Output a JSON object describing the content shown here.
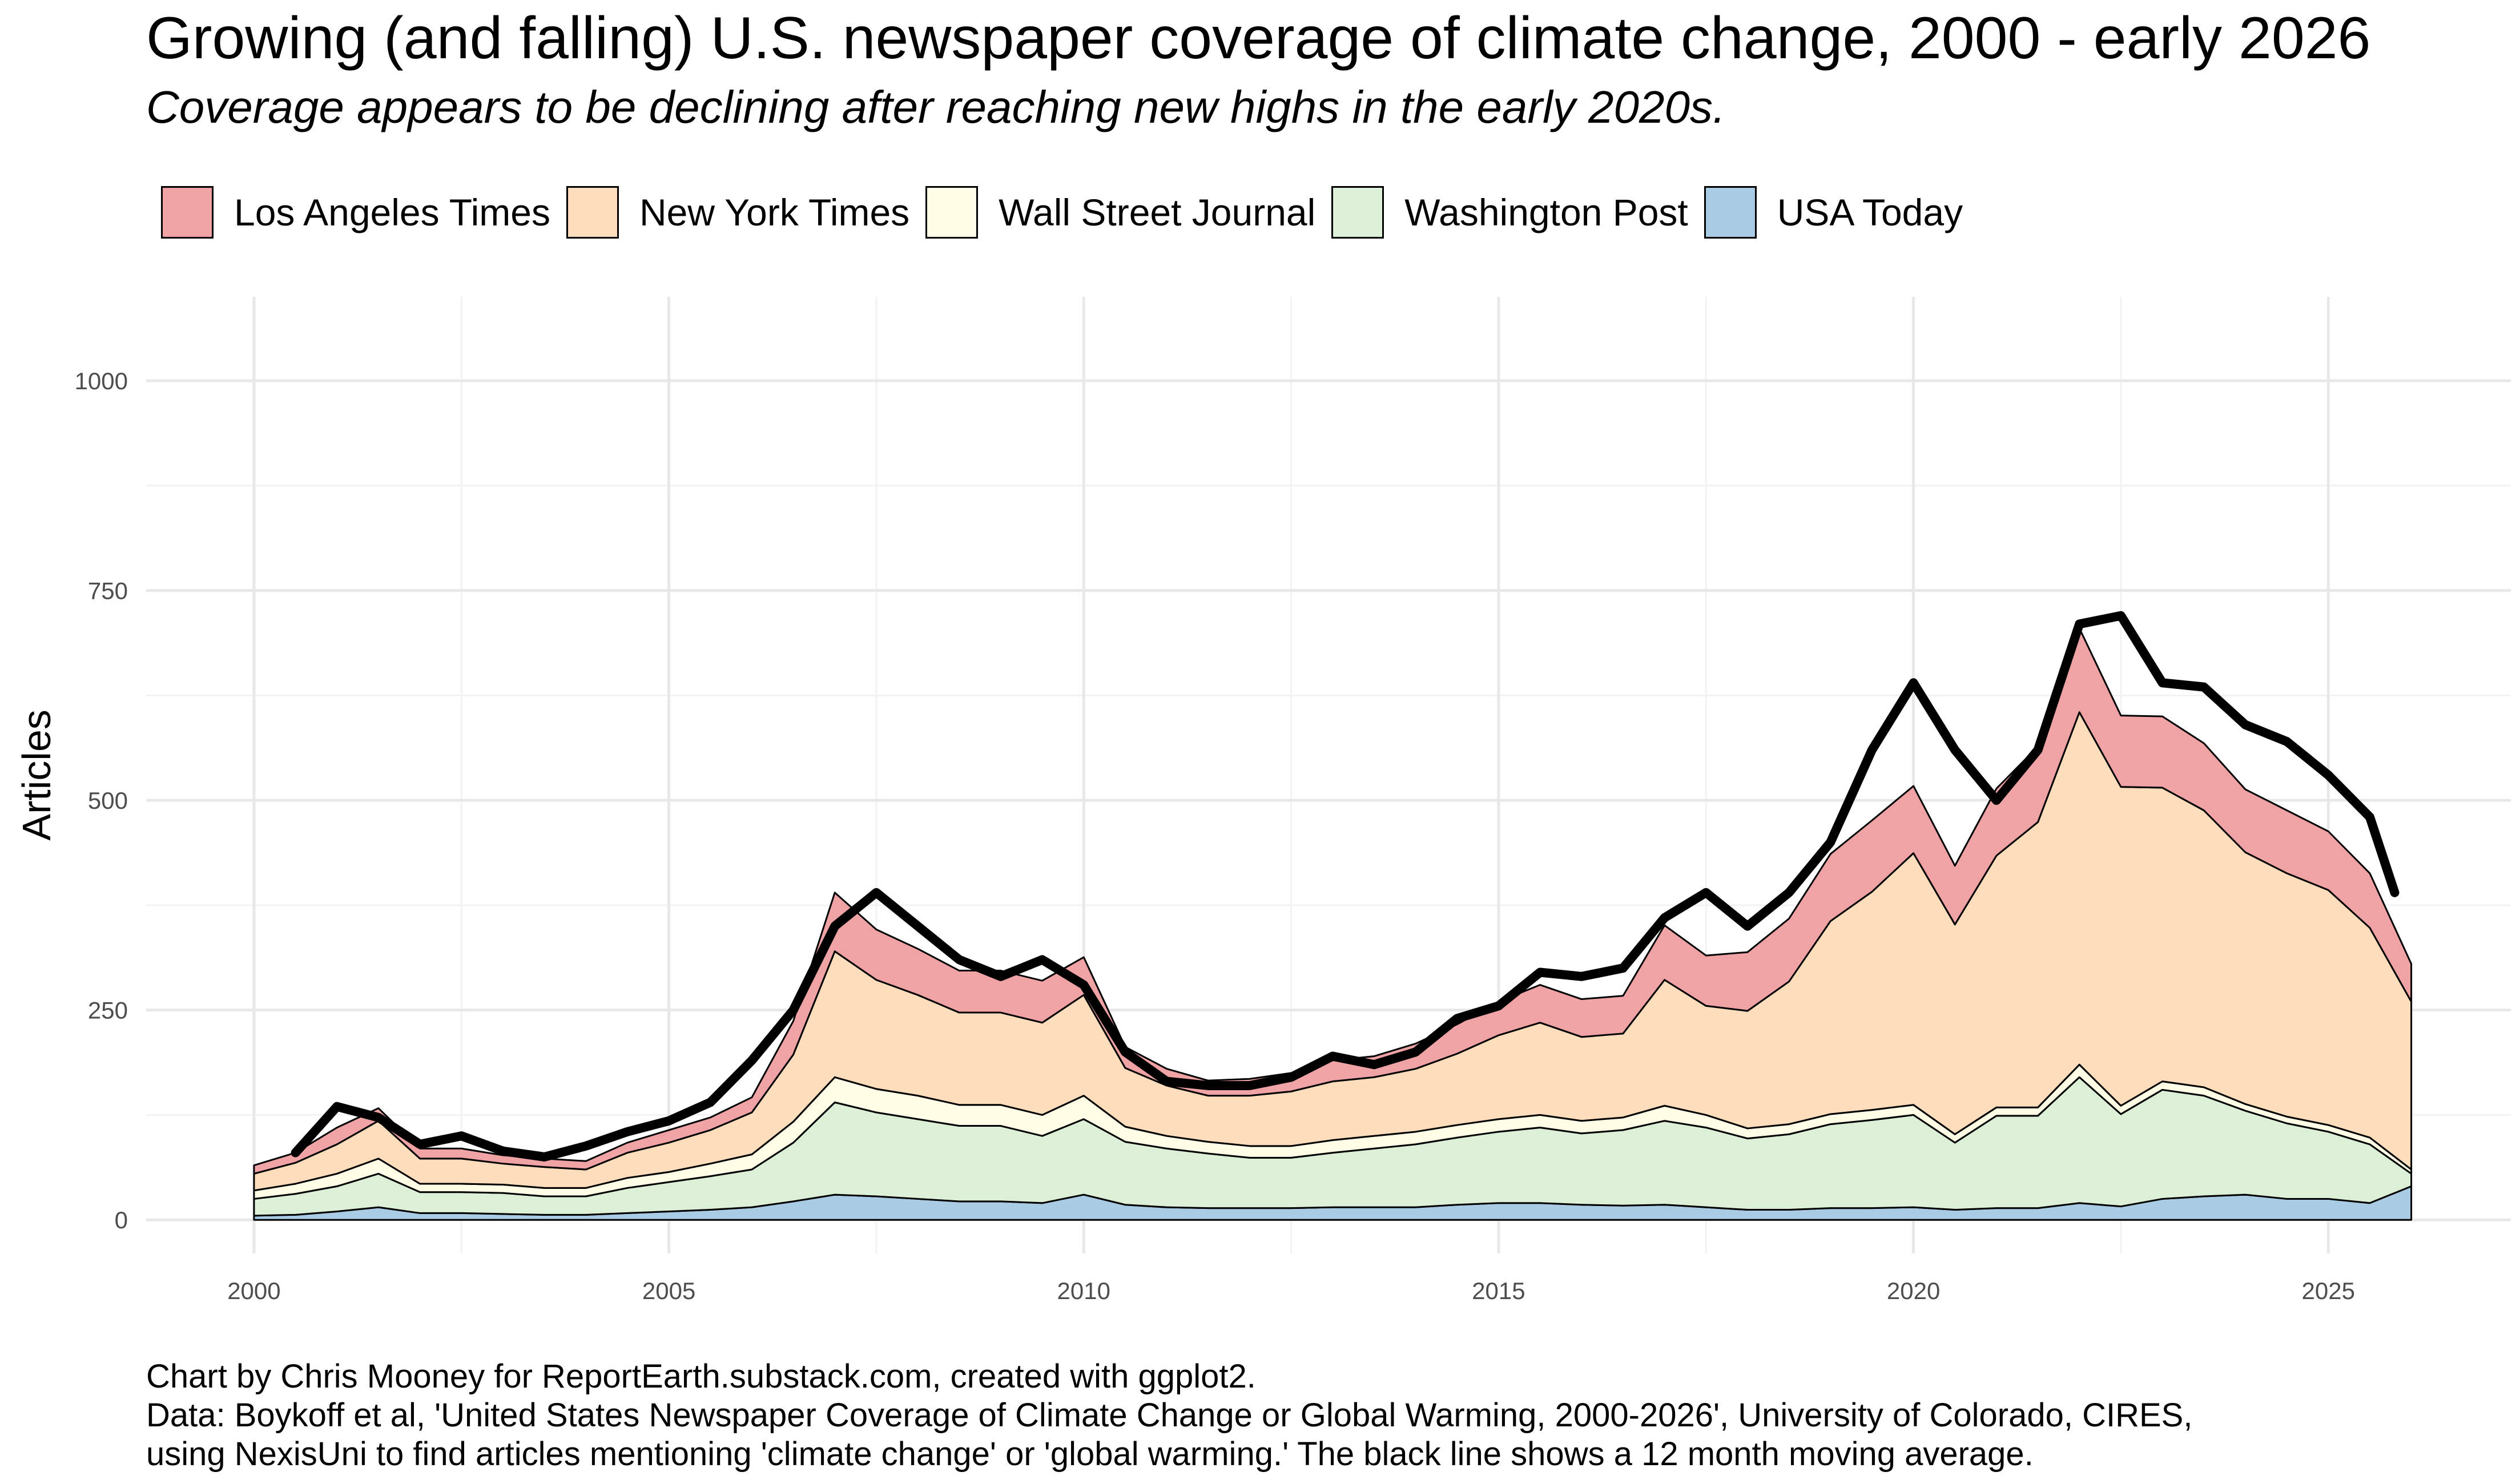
{
  "chart_data": {
    "type": "area",
    "stacked": true,
    "title": "Growing (and falling) U.S. newspaper coverage of climate change, 2000 - early 2026",
    "subtitle": "Coverage appears to be declining after reaching new highs in the early 2020s.",
    "xlabel": "",
    "ylabel": "Articles",
    "xlim": [
      1998.7,
      2027.2
    ],
    "ylim": [
      -40,
      1100
    ],
    "x_ticks": [
      2000,
      2005,
      2010,
      2015,
      2020,
      2025
    ],
    "y_ticks": [
      0,
      250,
      500,
      750,
      1000
    ],
    "grid": true,
    "legend_position": "top",
    "stack_order_bottom_to_top": [
      "USA Today",
      "Washington Post",
      "Wall Street Journal",
      "New York Times",
      "Los Angeles Times"
    ],
    "legend": [
      {
        "name": "Los Angeles Times",
        "color": "#F0A3A5"
      },
      {
        "name": "New York Times",
        "color": "#FDDDBB"
      },
      {
        "name": "Wall Street Journal",
        "color": "#FFFDE6"
      },
      {
        "name": "Washington Post",
        "color": "#DCF0D8"
      },
      {
        "name": "USA Today",
        "color": "#A9CBE4"
      }
    ],
    "x": [
      2000.0,
      2000.5,
      2001.0,
      2001.5,
      2002.0,
      2002.5,
      2003.0,
      2003.5,
      2004.0,
      2004.5,
      2005.0,
      2005.5,
      2006.0,
      2006.5,
      2007.0,
      2007.5,
      2008.0,
      2008.5,
      2009.0,
      2009.5,
      2010.0,
      2010.5,
      2011.0,
      2011.5,
      2012.0,
      2012.5,
      2013.0,
      2013.5,
      2014.0,
      2014.5,
      2015.0,
      2015.5,
      2016.0,
      2016.5,
      2017.0,
      2017.5,
      2018.0,
      2018.5,
      2019.0,
      2019.5,
      2020.0,
      2020.5,
      2021.0,
      2021.5,
      2022.0,
      2022.5,
      2023.0,
      2023.5,
      2024.0,
      2024.5,
      2025.0,
      2025.5,
      2026.0
    ],
    "series": [
      {
        "name": "USA Today",
        "color": "#A9CBE4",
        "values": [
          5,
          6,
          10,
          15,
          8,
          8,
          7,
          6,
          6,
          8,
          10,
          12,
          15,
          22,
          30,
          28,
          25,
          22,
          22,
          20,
          30,
          18,
          15,
          14,
          14,
          14,
          15,
          15,
          15,
          18,
          20,
          20,
          18,
          17,
          18,
          15,
          12,
          12,
          14,
          14,
          15,
          12,
          14,
          14,
          20,
          16,
          25,
          28,
          30,
          25,
          25,
          20,
          40
        ]
      },
      {
        "name": "Washington Post",
        "color": "#DCF0D8",
        "values": [
          20,
          25,
          30,
          40,
          25,
          25,
          25,
          22,
          22,
          30,
          35,
          40,
          45,
          70,
          110,
          100,
          95,
          90,
          90,
          80,
          90,
          75,
          70,
          65,
          60,
          60,
          65,
          70,
          75,
          80,
          85,
          90,
          85,
          90,
          100,
          95,
          85,
          90,
          100,
          105,
          110,
          80,
          110,
          110,
          150,
          110,
          130,
          120,
          100,
          90,
          80,
          70,
          15
        ]
      },
      {
        "name": "Wall Street Journal",
        "color": "#FFFDE6",
        "values": [
          10,
          12,
          15,
          18,
          10,
          10,
          10,
          10,
          10,
          12,
          12,
          15,
          18,
          25,
          30,
          28,
          28,
          25,
          25,
          25,
          28,
          18,
          15,
          14,
          14,
          14,
          15,
          15,
          15,
          15,
          15,
          15,
          15,
          15,
          18,
          15,
          12,
          12,
          12,
          12,
          12,
          10,
          10,
          10,
          15,
          10,
          10,
          10,
          8,
          8,
          8,
          8,
          5
        ]
      },
      {
        "name": "New York Times",
        "color": "#FDDDBB",
        "values": [
          20,
          25,
          35,
          45,
          30,
          30,
          25,
          25,
          22,
          30,
          35,
          40,
          50,
          80,
          150,
          130,
          120,
          110,
          110,
          110,
          120,
          70,
          60,
          55,
          60,
          65,
          70,
          70,
          75,
          85,
          100,
          110,
          100,
          100,
          150,
          130,
          140,
          170,
          230,
          260,
          300,
          250,
          300,
          340,
          420,
          380,
          350,
          330,
          300,
          290,
          280,
          250,
          200
        ]
      },
      {
        "name": "Los Angeles Times",
        "color": "#F0A3A5",
        "values": [
          10,
          12,
          20,
          15,
          12,
          12,
          10,
          10,
          10,
          12,
          15,
          15,
          18,
          40,
          70,
          60,
          55,
          50,
          50,
          50,
          45,
          25,
          20,
          18,
          20,
          22,
          25,
          25,
          30,
          35,
          40,
          45,
          45,
          45,
          65,
          60,
          70,
          75,
          80,
          85,
          80,
          70,
          80,
          90,
          100,
          85,
          85,
          80,
          75,
          75,
          70,
          65,
          45
        ]
      }
    ],
    "moving_average": {
      "name": "12 month moving average",
      "color": "#000000",
      "x": [
        2000.5,
        2001.0,
        2001.5,
        2002.0,
        2002.5,
        2003.0,
        2003.5,
        2004.0,
        2004.5,
        2005.0,
        2005.5,
        2006.0,
        2006.5,
        2007.0,
        2007.5,
        2008.0,
        2008.5,
        2009.0,
        2009.5,
        2010.0,
        2010.5,
        2011.0,
        2011.5,
        2012.0,
        2012.5,
        2013.0,
        2013.5,
        2014.0,
        2014.5,
        2015.0,
        2015.5,
        2016.0,
        2016.5,
        2017.0,
        2017.5,
        2018.0,
        2018.5,
        2019.0,
        2019.5,
        2020.0,
        2020.5,
        2021.0,
        2021.5,
        2022.0,
        2022.5,
        2023.0,
        2023.5,
        2024.0,
        2024.5,
        2025.0,
        2025.5,
        2025.8
      ],
      "values": [
        80,
        135,
        122,
        90,
        100,
        82,
        75,
        88,
        105,
        118,
        140,
        190,
        250,
        350,
        390,
        350,
        310,
        290,
        310,
        280,
        200,
        165,
        160,
        160,
        170,
        195,
        185,
        200,
        240,
        255,
        295,
        290,
        300,
        360,
        390,
        350,
        390,
        450,
        560,
        640,
        560,
        500,
        560,
        710,
        720,
        640,
        635,
        590,
        570,
        530,
        480,
        390
      ]
    }
  },
  "caption": {
    "line1": "Chart by Chris Mooney for ReportEarth.substack.com, created with ggplot2.",
    "line2": "Data: Boykoff et al, 'United States Newspaper Coverage of Climate Change or Global Warming, 2000-2026', University of Colorado, CIRES,",
    "line3": "using NexisUni to find articles mentioning 'climate change' or 'global warming.' The black line shows a 12 month moving average."
  }
}
